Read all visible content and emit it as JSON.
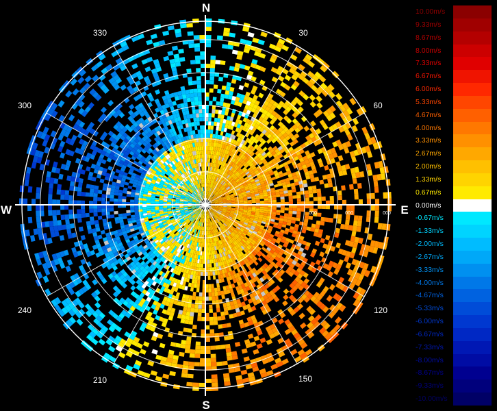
{
  "compass": {
    "north": "N",
    "south": "S",
    "east": "E",
    "west": "W"
  },
  "bearings": [
    "30",
    "60",
    "120",
    "150",
    "210",
    "240",
    "300",
    "330"
  ],
  "range_ring_labels": [
    "000",
    "000",
    "000"
  ],
  "legend": {
    "entries": [
      {
        "label": "10.00m/s",
        "color": "#8b0000"
      },
      {
        "label": "9.33m/s",
        "color": "#a00000"
      },
      {
        "label": "8.67m/s",
        "color": "#b40000"
      },
      {
        "label": "8.00m/s",
        "color": "#cc0000"
      },
      {
        "label": "7.33m/s",
        "color": "#e00000"
      },
      {
        "label": "6.67m/s",
        "color": "#f01400"
      },
      {
        "label": "6.00m/s",
        "color": "#ff2800"
      },
      {
        "label": "5.33m/s",
        "color": "#ff4600"
      },
      {
        "label": "4.67m/s",
        "color": "#ff6000"
      },
      {
        "label": "4.00m/s",
        "color": "#ff7800"
      },
      {
        "label": "3.33m/s",
        "color": "#ff9000"
      },
      {
        "label": "2.67m/s",
        "color": "#ffa800"
      },
      {
        "label": "2.00m/s",
        "color": "#ffc000"
      },
      {
        "label": "1.33m/s",
        "color": "#ffd400"
      },
      {
        "label": "0.67m/s",
        "color": "#ffea00"
      },
      {
        "label": "0.00m/s",
        "color": "#ffffff"
      },
      {
        "label": "-0.67m/s",
        "color": "#00e8ff"
      },
      {
        "label": "-1.33m/s",
        "color": "#00d4ff"
      },
      {
        "label": "-2.00m/s",
        "color": "#00bcff"
      },
      {
        "label": "-2.67m/s",
        "color": "#00a8f8"
      },
      {
        "label": "-3.33m/s",
        "color": "#0090f0"
      },
      {
        "label": "-4.00m/s",
        "color": "#0078e8"
      },
      {
        "label": "-4.67m/s",
        "color": "#0062e0"
      },
      {
        "label": "-5.33m/s",
        "color": "#004cd8"
      },
      {
        "label": "-6.00m/s",
        "color": "#0038d0"
      },
      {
        "label": "-6.67m/s",
        "color": "#0028c4"
      },
      {
        "label": "-7.33m/s",
        "color": "#0018b4"
      },
      {
        "label": "-8.00m/s",
        "color": "#000ca4"
      },
      {
        "label": "-8.67m/s",
        "color": "#000090"
      },
      {
        "label": "-9.33m/s",
        "color": "#00007c"
      },
      {
        "label": "-10.00m/s",
        "color": "#000066"
      }
    ]
  }
}
